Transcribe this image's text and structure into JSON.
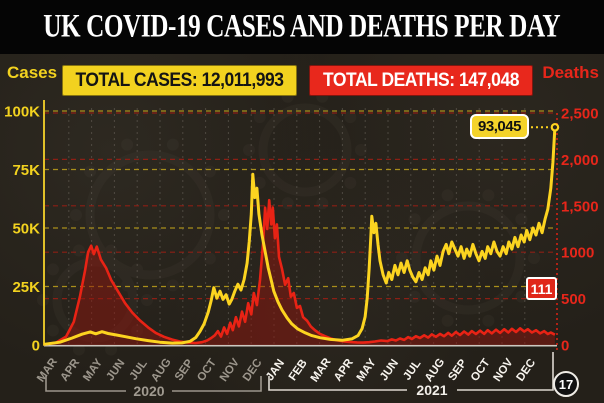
{
  "header": {
    "title": "UK COVID-19 CASES AND DEATHS PER DAY"
  },
  "summary": {
    "cases_badge": "TOTAL CASES: 12,011,993",
    "deaths_badge": "TOTAL DEATHS: 147,048"
  },
  "axes": {
    "left_title": "Cases",
    "right_title": "Deaths",
    "cases_ticks": [
      {
        "label": "100K",
        "value": 100000
      },
      {
        "label": "75K",
        "value": 75000
      },
      {
        "label": "50K",
        "value": 50000
      },
      {
        "label": "25K",
        "value": 25000
      },
      {
        "label": "0",
        "value": 0
      }
    ],
    "deaths_ticks": [
      {
        "label": "2,500",
        "value": 2500
      },
      {
        "label": "2,000",
        "value": 2000
      },
      {
        "label": "1,500",
        "value": 1500
      },
      {
        "label": "1000",
        "value": 1000
      },
      {
        "label": "500",
        "value": 500
      },
      {
        "label": "0",
        "value": 0
      }
    ]
  },
  "x_axis": {
    "months_2020": [
      "MAR",
      "APR",
      "MAY",
      "JUN",
      "JUL",
      "AUG",
      "SEP",
      "OCT",
      "NOV",
      "DEC"
    ],
    "months_2021": [
      "JAN",
      "FEB",
      "MAR",
      "APR",
      "MAY",
      "JUN",
      "JUL",
      "AUG",
      "SEP",
      "OCT",
      "NOV",
      "DEC"
    ],
    "year_2020": "2020",
    "year_2021": "2021"
  },
  "annotations": {
    "peak_cases_label": "93,045",
    "latest_deaths_label": "111",
    "date_circle": "17"
  },
  "colors": {
    "cases": "#fcd420",
    "cases_axis": "#e0c028",
    "cases_label": "#f2d21f",
    "deaths": "#e82315",
    "deaths_label": "#e7261a",
    "deaths_fill": "#8f150d",
    "cases_grid": "#a98f1b",
    "deaths_grid": "#8c1f15",
    "month_grid": "#7a746b",
    "baseline": "#ccc8c0",
    "months_2020": "#9c968c",
    "months_2021": "#f7f4ee",
    "bracket_2020": "#9c968c",
    "bracket_2021": "#ddd8d0",
    "marker_core": "#26221d"
  },
  "chart_data": {
    "type": "line",
    "title": "UK COVID-19 cases and deaths per day",
    "x_range": [
      "Mar 2020",
      "17 Dec 2021"
    ],
    "x_tick_labels": [
      "MAR",
      "APR",
      "MAY",
      "JUN",
      "JUL",
      "AUG",
      "SEP",
      "OCT",
      "NOV",
      "DEC",
      "JAN",
      "FEB",
      "MAR",
      "APR",
      "MAY",
      "JUN",
      "JUL",
      "AUG",
      "SEP",
      "OCT",
      "NOV",
      "DEC"
    ],
    "grid": true,
    "legend": "none",
    "annotations": [
      {
        "series": "Daily cases",
        "text": "93,045",
        "x": 0.996,
        "value": 93045
      },
      {
        "series": "Daily deaths",
        "text": "111",
        "x": 0.996,
        "value": 111
      }
    ],
    "series": [
      {
        "name": "Daily cases",
        "axis": "left",
        "ylabel": "Cases",
        "ylim": [
          0,
          100000
        ],
        "color": "#fcd420",
        "points": [
          [
            0,
            300
          ],
          [
            0.031,
            1200
          ],
          [
            0.055,
            3000
          ],
          [
            0.074,
            4600
          ],
          [
            0.09,
            5600
          ],
          [
            0.101,
            4800
          ],
          [
            0.113,
            5700
          ],
          [
            0.125,
            4900
          ],
          [
            0.14,
            4300
          ],
          [
            0.16,
            3500
          ],
          [
            0.179,
            2700
          ],
          [
            0.203,
            1900
          ],
          [
            0.226,
            1200
          ],
          [
            0.25,
            800
          ],
          [
            0.269,
            900
          ],
          [
            0.285,
            1600
          ],
          [
            0.296,
            3200
          ],
          [
            0.304,
            5800
          ],
          [
            0.312,
            9000
          ],
          [
            0.32,
            14000
          ],
          [
            0.326,
            19000
          ],
          [
            0.331,
            24500
          ],
          [
            0.337,
            20000
          ],
          [
            0.343,
            23000
          ],
          [
            0.349,
            19500
          ],
          [
            0.355,
            21500
          ],
          [
            0.361,
            17500
          ],
          [
            0.366,
            19500
          ],
          [
            0.372,
            23000
          ],
          [
            0.378,
            26000
          ],
          [
            0.384,
            23500
          ],
          [
            0.39,
            28000
          ],
          [
            0.396,
            35000
          ],
          [
            0.4,
            44000
          ],
          [
            0.404,
            56000
          ],
          [
            0.407,
            73000
          ],
          [
            0.411,
            63000
          ],
          [
            0.415,
            67000
          ],
          [
            0.419,
            56000
          ],
          [
            0.425,
            47000
          ],
          [
            0.431,
            40000
          ],
          [
            0.437,
            33000
          ],
          [
            0.443,
            27500
          ],
          [
            0.448,
            23000
          ],
          [
            0.456,
            18500
          ],
          [
            0.464,
            15000
          ],
          [
            0.474,
            11500
          ],
          [
            0.483,
            9000
          ],
          [
            0.495,
            6800
          ],
          [
            0.509,
            5200
          ],
          [
            0.522,
            4000
          ],
          [
            0.538,
            3100
          ],
          [
            0.558,
            2400
          ],
          [
            0.581,
            2000
          ],
          [
            0.6,
            2600
          ],
          [
            0.612,
            4000
          ],
          [
            0.62,
            7000
          ],
          [
            0.626,
            12000
          ],
          [
            0.63,
            20000
          ],
          [
            0.634,
            33000
          ],
          [
            0.637,
            46000
          ],
          [
            0.639,
            55000
          ],
          [
            0.643,
            48000
          ],
          [
            0.647,
            52000
          ],
          [
            0.651,
            43000
          ],
          [
            0.655,
            36000
          ],
          [
            0.661,
            30000
          ],
          [
            0.667,
            26500
          ],
          [
            0.672,
            31000
          ],
          [
            0.678,
            28000
          ],
          [
            0.684,
            34000
          ],
          [
            0.69,
            30000
          ],
          [
            0.696,
            35000
          ],
          [
            0.702,
            31000
          ],
          [
            0.708,
            36000
          ],
          [
            0.713,
            32000
          ],
          [
            0.719,
            29000
          ],
          [
            0.725,
            27000
          ],
          [
            0.731,
            31000
          ],
          [
            0.737,
            28000
          ],
          [
            0.743,
            33000
          ],
          [
            0.749,
            30000
          ],
          [
            0.754,
            36000
          ],
          [
            0.76,
            32000
          ],
          [
            0.766,
            38000
          ],
          [
            0.772,
            34000
          ],
          [
            0.778,
            40000
          ],
          [
            0.784,
            43000
          ],
          [
            0.789,
            39000
          ],
          [
            0.795,
            44000
          ],
          [
            0.801,
            41000
          ],
          [
            0.807,
            38000
          ],
          [
            0.813,
            42000
          ],
          [
            0.819,
            37000
          ],
          [
            0.824,
            41000
          ],
          [
            0.83,
            38000
          ],
          [
            0.836,
            43000
          ],
          [
            0.842,
            39000
          ],
          [
            0.848,
            36000
          ],
          [
            0.854,
            40000
          ],
          [
            0.86,
            37000
          ],
          [
            0.865,
            42000
          ],
          [
            0.871,
            39000
          ],
          [
            0.877,
            44000
          ],
          [
            0.883,
            40000
          ],
          [
            0.889,
            38000
          ],
          [
            0.895,
            42000
          ],
          [
            0.901,
            39000
          ],
          [
            0.906,
            44000
          ],
          [
            0.912,
            41000
          ],
          [
            0.918,
            46000
          ],
          [
            0.924,
            42000
          ],
          [
            0.93,
            47000
          ],
          [
            0.936,
            44000
          ],
          [
            0.941,
            49000
          ],
          [
            0.947,
            45000
          ],
          [
            0.953,
            50000
          ],
          [
            0.959,
            47000
          ],
          [
            0.965,
            52000
          ],
          [
            0.971,
            48000
          ],
          [
            0.977,
            54000
          ],
          [
            0.982,
            58000
          ],
          [
            0.988,
            67000
          ],
          [
            0.992,
            78000
          ],
          [
            0.996,
            93045
          ]
        ]
      },
      {
        "name": "Daily deaths",
        "axis": "right",
        "ylabel": "Deaths",
        "ylim": [
          0,
          2500
        ],
        "color": "#e82315",
        "points": [
          [
            0,
            5
          ],
          [
            0.023,
            25
          ],
          [
            0.043,
            90
          ],
          [
            0.058,
            250
          ],
          [
            0.07,
            520
          ],
          [
            0.08,
            800
          ],
          [
            0.086,
            1000
          ],
          [
            0.092,
            1070
          ],
          [
            0.097,
            980
          ],
          [
            0.103,
            1060
          ],
          [
            0.111,
            920
          ],
          [
            0.121,
            830
          ],
          [
            0.131,
            700
          ],
          [
            0.144,
            580
          ],
          [
            0.158,
            450
          ],
          [
            0.172,
            350
          ],
          [
            0.187,
            265
          ],
          [
            0.203,
            190
          ],
          [
            0.218,
            130
          ],
          [
            0.234,
            88
          ],
          [
            0.25,
            58
          ],
          [
            0.265,
            38
          ],
          [
            0.281,
            26
          ],
          [
            0.296,
            22
          ],
          [
            0.308,
            30
          ],
          [
            0.318,
            48
          ],
          [
            0.326,
            75
          ],
          [
            0.333,
            105
          ],
          [
            0.339,
            150
          ],
          [
            0.345,
            90
          ],
          [
            0.351,
            190
          ],
          [
            0.357,
            120
          ],
          [
            0.363,
            240
          ],
          [
            0.368,
            160
          ],
          [
            0.374,
            300
          ],
          [
            0.38,
            200
          ],
          [
            0.386,
            360
          ],
          [
            0.392,
            250
          ],
          [
            0.398,
            450
          ],
          [
            0.404,
            330
          ],
          [
            0.409,
            560
          ],
          [
            0.415,
            430
          ],
          [
            0.421,
            700
          ],
          [
            0.427,
            1100
          ],
          [
            0.431,
            1480
          ],
          [
            0.435,
            1250
          ],
          [
            0.439,
            1560
          ],
          [
            0.443,
            1300
          ],
          [
            0.446,
            1480
          ],
          [
            0.45,
            1150
          ],
          [
            0.454,
            1300
          ],
          [
            0.458,
            950
          ],
          [
            0.464,
            820
          ],
          [
            0.47,
            650
          ],
          [
            0.476,
            720
          ],
          [
            0.481,
            520
          ],
          [
            0.487,
            560
          ],
          [
            0.493,
            400
          ],
          [
            0.499,
            420
          ],
          [
            0.505,
            300
          ],
          [
            0.513,
            260
          ],
          [
            0.52,
            200
          ],
          [
            0.528,
            160
          ],
          [
            0.538,
            120
          ],
          [
            0.548,
            95
          ],
          [
            0.559,
            70
          ],
          [
            0.571,
            52
          ],
          [
            0.583,
            40
          ],
          [
            0.596,
            32
          ],
          [
            0.61,
            28
          ],
          [
            0.622,
            26
          ],
          [
            0.634,
            30
          ],
          [
            0.645,
            38
          ],
          [
            0.657,
            48
          ],
          [
            0.669,
            42
          ],
          [
            0.678,
            60
          ],
          [
            0.686,
            48
          ],
          [
            0.694,
            70
          ],
          [
            0.702,
            55
          ],
          [
            0.71,
            85
          ],
          [
            0.717,
            65
          ],
          [
            0.725,
            95
          ],
          [
            0.733,
            75
          ],
          [
            0.741,
            105
          ],
          [
            0.749,
            80
          ],
          [
            0.756,
            115
          ],
          [
            0.764,
            88
          ],
          [
            0.772,
            120
          ],
          [
            0.78,
            95
          ],
          [
            0.788,
            130
          ],
          [
            0.795,
            100
          ],
          [
            0.803,
            140
          ],
          [
            0.811,
            108
          ],
          [
            0.819,
            145
          ],
          [
            0.827,
            112
          ],
          [
            0.834,
            150
          ],
          [
            0.842,
            118
          ],
          [
            0.85,
            155
          ],
          [
            0.858,
            120
          ],
          [
            0.865,
            160
          ],
          [
            0.873,
            125
          ],
          [
            0.881,
            165
          ],
          [
            0.889,
            130
          ],
          [
            0.897,
            170
          ],
          [
            0.905,
            135
          ],
          [
            0.912,
            175
          ],
          [
            0.92,
            140
          ],
          [
            0.928,
            180
          ],
          [
            0.936,
            145
          ],
          [
            0.943,
            170
          ],
          [
            0.951,
            135
          ],
          [
            0.959,
            160
          ],
          [
            0.967,
            125
          ],
          [
            0.975,
            150
          ],
          [
            0.982,
            118
          ],
          [
            0.988,
            135
          ],
          [
            0.996,
            111
          ]
        ]
      }
    ]
  }
}
